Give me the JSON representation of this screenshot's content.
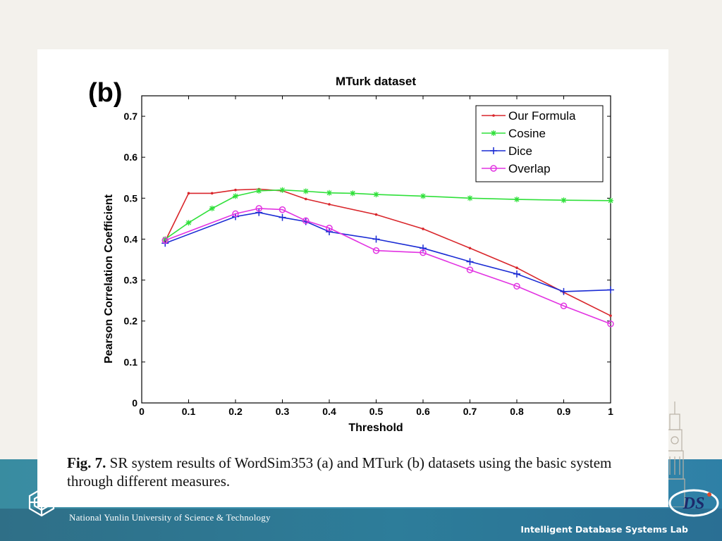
{
  "slide": {
    "footer_left": "National Yunlin University of Science & Technology",
    "footer_right": "Intelligent Database Systems Lab",
    "brand_color": "#2d7d9a"
  },
  "figure": {
    "panel_label": "(b)",
    "caption_label": "Fig. 7.",
    "caption_text": " SR system results of WordSim353 (a) and MTurk (b) datasets using the basic system through different measures."
  },
  "chart_data": {
    "type": "line",
    "title": "MTurk dataset",
    "xlabel": "Threshold",
    "ylabel": "Pearson Correlation Coefficient",
    "xlim": [
      0,
      1
    ],
    "ylim": [
      0,
      0.75
    ],
    "xticks": [
      "0",
      "0.1",
      "0.2",
      "0.3",
      "0.4",
      "0.5",
      "0.6",
      "0.7",
      "0.8",
      "0.9",
      "1"
    ],
    "yticks": [
      "0",
      "0.1",
      "0.2",
      "0.3",
      "0.4",
      "0.5",
      "0.6",
      "0.7"
    ],
    "grid": false,
    "legend": "top-right",
    "series": [
      {
        "name": "Our Formula",
        "color": "#d9262b",
        "marker": "dot",
        "x": [
          0.05,
          0.1,
          0.15,
          0.2,
          0.25,
          0.3,
          0.35,
          0.4,
          0.5,
          0.6,
          0.7,
          0.8,
          0.9,
          1.0
        ],
        "y": [
          0.395,
          0.512,
          0.512,
          0.52,
          0.522,
          0.518,
          0.498,
          0.485,
          0.46,
          0.425,
          0.378,
          0.33,
          0.27,
          0.213
        ]
      },
      {
        "name": "Cosine",
        "color": "#2fe03a",
        "marker": "star",
        "x": [
          0.05,
          0.1,
          0.15,
          0.2,
          0.25,
          0.3,
          0.35,
          0.4,
          0.45,
          0.5,
          0.6,
          0.7,
          0.8,
          0.9,
          1.0
        ],
        "y": [
          0.4,
          0.44,
          0.475,
          0.505,
          0.518,
          0.52,
          0.517,
          0.513,
          0.512,
          0.509,
          0.505,
          0.5,
          0.497,
          0.495,
          0.494
        ]
      },
      {
        "name": "Dice",
        "color": "#1a2bd4",
        "marker": "plus",
        "x": [
          0.05,
          0.2,
          0.25,
          0.3,
          0.35,
          0.4,
          0.5,
          0.6,
          0.7,
          0.8,
          0.9,
          1.0
        ],
        "y": [
          0.39,
          0.455,
          0.465,
          0.453,
          0.443,
          0.418,
          0.4,
          0.378,
          0.345,
          0.315,
          0.272,
          0.276
        ]
      },
      {
        "name": "Overlap",
        "color": "#e233e2",
        "marker": "circle",
        "x": [
          0.05,
          0.2,
          0.25,
          0.3,
          0.35,
          0.4,
          0.5,
          0.6,
          0.7,
          0.8,
          0.9,
          1.0
        ],
        "y": [
          0.397,
          0.462,
          0.475,
          0.472,
          0.445,
          0.427,
          0.372,
          0.367,
          0.325,
          0.285,
          0.237,
          0.193
        ]
      }
    ]
  }
}
